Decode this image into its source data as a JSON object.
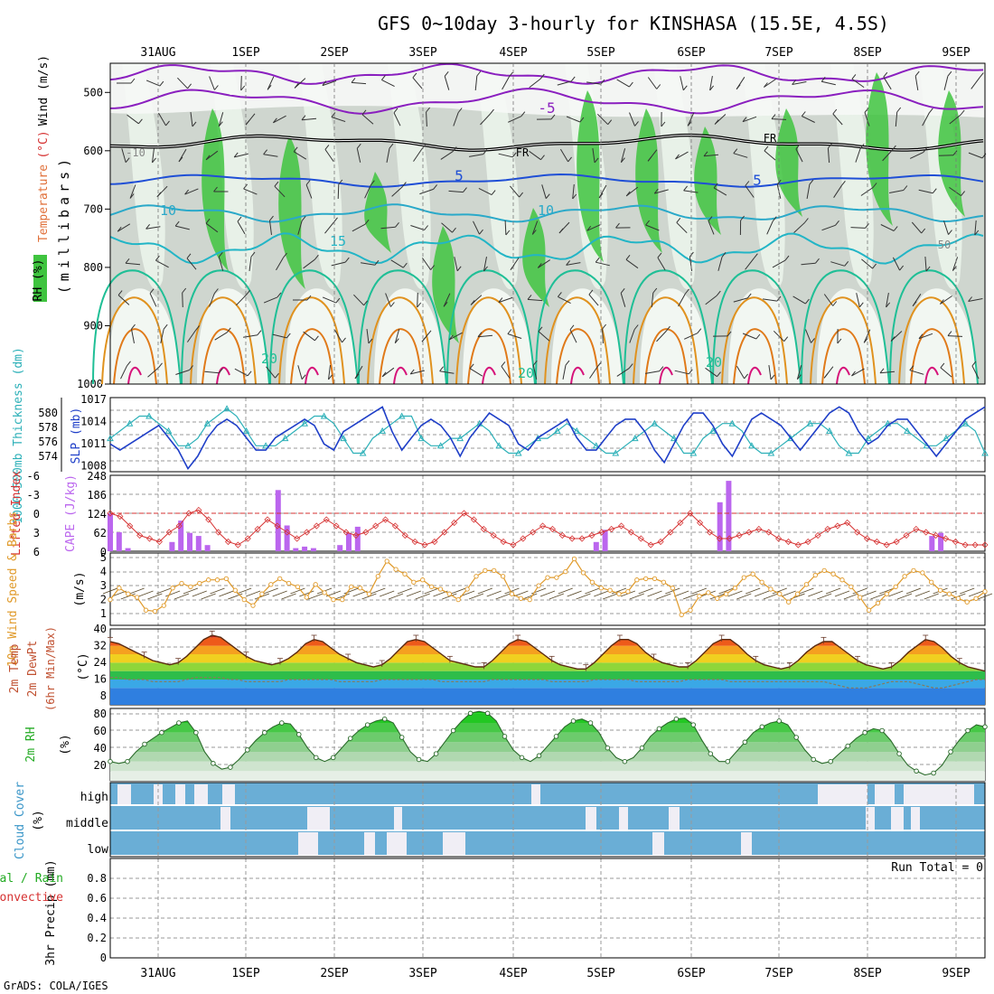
{
  "title": "GFS 0~10day 3-hourly for KINSHASA (15.5E, 4.5S)",
  "footer": "GrADS: COLA/IGES",
  "date_labels": [
    "31AUG",
    "1SEP",
    "2SEP",
    "3SEP",
    "4SEP",
    "5SEP",
    "6SEP",
    "7SEP",
    "8SEP",
    "9SEP"
  ],
  "colors": {
    "frame": "#000000",
    "grid": "#9a9a9a",
    "green": "#3fc43f",
    "purple": "#8a1fbf",
    "blue": "#1f4fd6",
    "cyan": "#2aa9c9",
    "teal": "#1fbf96",
    "orange": "#e0921f",
    "magenta": "#d6147a",
    "slp": "#1f3fc8",
    "thick": "#2cb0b8",
    "lifted": "#d63232",
    "cape": "#bb66ee",
    "wind": "#e09a2a",
    "cloud": "#6aaed6",
    "cloudgap": "#f0eef5"
  },
  "chart_data": [
    {
      "id": "upper_air",
      "type": "heatmap",
      "ylabel": "(millibars)",
      "side_labels": {
        "rh": "RH (%)",
        "temp": "Temperature",
        "temp_unit": "(°C)",
        "wind": "Wind (m/s)"
      },
      "yticks": [
        500,
        600,
        700,
        800,
        900,
        1000
      ],
      "ylim": [
        450,
        1000
      ],
      "contour_labels": [
        "-5",
        "FR",
        "FR",
        "5",
        "5",
        "10",
        "10",
        "15",
        "20",
        "20",
        "20",
        "-10",
        "50"
      ]
    },
    {
      "id": "slp_thickness",
      "type": "line",
      "left_label": "1000-500mb Thickness (dm)",
      "right_label": "SLP (mb)",
      "left_ticks": [
        "580",
        "578",
        "576",
        "574"
      ],
      "right_ticks": [
        "1017",
        "1014",
        "1011",
        "1008"
      ],
      "slp": [
        1010,
        1009,
        1010,
        1011,
        1012,
        1013,
        1011,
        1009,
        1006,
        1008,
        1011,
        1013,
        1014,
        1013,
        1011,
        1009,
        1009,
        1011,
        1012,
        1013,
        1014,
        1013,
        1010,
        1009,
        1012,
        1013,
        1014,
        1015,
        1016,
        1012,
        1009,
        1011,
        1013,
        1014,
        1013,
        1011,
        1008,
        1011,
        1013,
        1015,
        1014,
        1013,
        1010,
        1009,
        1011,
        1012,
        1013,
        1014,
        1011,
        1009,
        1009,
        1011,
        1013,
        1014,
        1014,
        1012,
        1009,
        1007,
        1010,
        1013,
        1015,
        1015,
        1013,
        1010,
        1008,
        1011,
        1014,
        1015,
        1014,
        1013,
        1011,
        1009,
        1011,
        1013,
        1015,
        1016,
        1015,
        1012,
        1010,
        1011,
        1013,
        1014,
        1014,
        1012,
        1010,
        1008,
        1010,
        1012,
        1014,
        1015,
        1016
      ],
      "thickness": [
        577,
        578,
        579,
        580,
        580,
        579,
        578,
        576,
        576,
        577,
        579,
        580,
        581,
        580,
        578,
        576,
        576,
        576,
        577,
        578,
        579,
        580,
        580,
        579,
        577,
        575,
        575,
        577,
        578,
        579,
        580,
        580,
        577,
        576,
        576,
        577,
        577,
        578,
        579,
        578,
        576,
        575,
        575,
        576,
        577,
        577,
        578,
        579,
        578,
        577,
        576,
        575,
        575,
        576,
        577,
        578,
        579,
        578,
        577,
        575,
        575,
        577,
        578,
        579,
        579,
        578,
        576,
        575,
        575,
        576,
        577,
        578,
        579,
        579,
        578,
        576,
        575,
        575,
        577,
        578,
        579,
        579,
        578,
        577,
        576,
        576,
        577,
        578,
        579,
        578,
        575
      ]
    },
    {
      "id": "cape_li",
      "type": "bar",
      "left_label": "Lifted Index",
      "right_label": "CAPE (J/kg)",
      "left_ticks": [
        "-6",
        "-3",
        "0",
        "3",
        "6"
      ],
      "right_ticks": [
        "248",
        "186",
        "124",
        "62",
        "0"
      ],
      "lifted_index": [
        0,
        0.5,
        2,
        3.5,
        4,
        4.5,
        3,
        2,
        0,
        -0.5,
        1,
        3,
        4.5,
        5,
        4,
        2.5,
        1,
        2,
        3,
        4,
        3,
        2,
        1,
        2,
        3,
        3.5,
        3,
        2,
        1,
        2,
        3.5,
        4.5,
        5,
        4.5,
        3,
        1.5,
        0,
        1,
        2.5,
        3.5,
        4.5,
        5,
        4,
        3,
        2,
        2.5,
        3.5,
        4,
        4,
        3.5,
        3,
        2.5,
        2,
        3,
        4,
        5,
        4.5,
        3,
        1.5,
        0,
        1.5,
        3,
        4,
        4,
        3.5,
        3,
        2.5,
        3,
        4,
        4.5,
        5,
        4.5,
        3.5,
        2.5,
        2,
        1.5,
        3,
        4,
        4.5,
        5,
        4.5,
        3.5,
        2.5,
        3,
        3.5,
        4,
        4.5,
        5,
        5,
        5
      ],
      "cape": [
        124,
        62,
        10,
        0,
        0,
        0,
        0,
        30,
        100,
        60,
        50,
        20,
        0,
        0,
        0,
        0,
        0,
        0,
        0,
        200,
        84,
        10,
        15,
        10,
        0,
        0,
        20,
        60,
        80,
        0,
        0,
        0,
        0,
        0,
        0,
        0,
        0,
        0,
        0,
        0,
        0,
        0,
        0,
        0,
        0,
        0,
        0,
        0,
        0,
        0,
        0,
        0,
        0,
        0,
        0,
        30,
        70,
        0,
        0,
        0,
        0,
        0,
        0,
        0,
        0,
        0,
        0,
        0,
        0,
        160,
        230,
        0,
        0,
        0,
        0,
        0,
        0,
        0,
        0,
        0,
        0,
        0,
        0,
        0,
        0,
        0,
        0,
        0,
        0,
        0,
        0,
        0,
        0,
        50,
        60,
        0,
        0,
        0,
        0,
        0
      ],
      "li_zero_line": true
    },
    {
      "id": "wind10m",
      "type": "line",
      "left_label": "10m Wind Speed & Barbs",
      "unit_label": "(m/s)",
      "yticks": [
        "5",
        "4",
        "3",
        "2",
        "1"
      ],
      "ylim": [
        0,
        5.5
      ],
      "speed": [
        1.5,
        2.5,
        2,
        1.7,
        0.6,
        0.5,
        1,
        2.5,
        2.9,
        2.6,
        2.9,
        3.2,
        3.2,
        3.3,
        2.3,
        1.5,
        1,
        2,
        2.8,
        3.3,
        2.9,
        2.6,
        1.7,
        2.8,
        2.1,
        1.5,
        1.5,
        2.6,
        2.5,
        2,
        3.5,
        4.8,
        4.1,
        3.7,
        3,
        3.2,
        2.6,
        2.4,
        2,
        1.5,
        2.4,
        3.5,
        4,
        4,
        3.5,
        2,
        1.6,
        1.5,
        2.7,
        3.4,
        3.4,
        3.9,
        5,
        3.8,
        3,
        2.5,
        2.3,
        2,
        2.2,
        3.2,
        3.3,
        3.3,
        3,
        2.5,
        0.2,
        0.6,
        1.8,
        2.1,
        1.6,
        2,
        2.5,
        3.4,
        3.7,
        3,
        2.4,
        2,
        1.3,
        2,
        2.8,
        3.6,
        4,
        3.7,
        3.2,
        2.6,
        1.7,
        0.6,
        1.2,
        2,
        2.6,
        3.5,
        4,
        3.8,
        3,
        2.3,
        2,
        1.6,
        1.3,
        1.6,
        2.2
      ],
      "barbs": true
    },
    {
      "id": "temp2m",
      "type": "area",
      "left_label": "2m Temp",
      "left_label2": "2m DewPt",
      "left_label3": "(6hr Min/Max)",
      "unit_label": "(°C)",
      "yticks": [
        "40",
        "32",
        "24",
        "16",
        "8"
      ],
      "ylim": [
        4,
        40
      ],
      "temp": [
        34,
        33,
        31,
        29,
        27,
        25,
        24,
        23,
        24,
        27,
        31,
        35,
        37,
        36,
        33,
        30,
        27,
        25,
        24,
        23,
        24,
        26,
        29,
        33,
        35,
        34,
        31,
        28,
        26,
        24,
        23,
        22,
        23,
        26,
        30,
        34,
        35,
        34,
        31,
        28,
        25,
        24,
        23,
        22,
        22,
        25,
        29,
        33,
        35,
        34,
        31,
        28,
        25,
        23,
        22,
        21,
        21,
        24,
        28,
        32,
        35,
        35,
        33,
        29,
        26,
        24,
        23,
        22,
        22,
        25,
        29,
        33,
        35,
        35,
        32,
        28,
        25,
        23,
        22,
        21,
        22,
        25,
        29,
        32,
        34,
        34,
        31,
        28,
        25,
        23,
        22,
        21,
        22,
        25,
        29,
        32,
        35,
        34,
        31,
        27,
        24,
        22,
        21,
        20
      ],
      "dewpt": [
        17,
        17,
        16,
        16,
        16,
        15,
        15,
        15,
        15,
        16,
        17,
        17,
        17,
        17,
        16,
        16,
        15,
        15,
        15,
        15,
        15,
        16,
        16,
        16,
        16,
        16,
        16,
        15,
        15,
        15,
        15,
        15,
        16,
        16,
        16,
        16,
        16,
        16,
        16,
        15,
        15,
        15,
        15,
        15,
        15,
        16,
        16,
        16,
        16,
        16,
        16,
        16,
        15,
        15,
        15,
        15,
        15,
        16,
        16,
        16,
        16,
        16,
        15,
        15,
        15,
        15,
        15,
        15,
        16,
        16,
        16,
        16,
        16,
        15,
        15,
        15,
        15,
        15,
        15,
        15,
        15,
        15,
        15,
        15,
        15,
        14,
        13,
        12,
        12,
        12,
        13,
        14,
        15,
        15,
        15,
        14,
        13,
        12,
        12,
        13,
        14,
        15,
        16,
        16
      ]
    },
    {
      "id": "rh2m",
      "type": "area",
      "left_label": "2m RH",
      "unit_label": "(%)",
      "yticks": [
        "80",
        "60",
        "40",
        "20"
      ],
      "ylim": [
        10,
        85
      ],
      "rh": [
        30,
        28,
        30,
        40,
        48,
        54,
        60,
        65,
        70,
        72,
        60,
        40,
        28,
        22,
        24,
        32,
        42,
        52,
        60,
        66,
        70,
        69,
        58,
        44,
        34,
        30,
        34,
        44,
        54,
        62,
        68,
        72,
        74,
        70,
        55,
        40,
        32,
        30,
        38,
        50,
        62,
        72,
        80,
        82,
        80,
        72,
        56,
        42,
        34,
        30,
        36,
        46,
        56,
        66,
        72,
        74,
        70,
        60,
        44,
        34,
        30,
        34,
        44,
        56,
        64,
        70,
        74,
        75,
        68,
        52,
        38,
        30,
        30,
        40,
        50,
        60,
        66,
        70,
        72,
        68,
        55,
        42,
        32,
        28,
        30,
        38,
        46,
        54,
        60,
        64,
        62,
        52,
        38,
        26,
        20,
        16,
        18,
        26,
        40,
        52,
        62,
        68,
        66
      ]
    },
    {
      "id": "cloud",
      "type": "bar",
      "left_label": "Cloud Cover",
      "unit_label": "(%)",
      "levels": [
        "high",
        "middle",
        "low"
      ]
    },
    {
      "id": "precip",
      "type": "bar",
      "left_label": "Total / Rain",
      "left_label2": "Convective",
      "axis_label": "3hr Precip (mm)",
      "yticks": [
        "0.8",
        "0.6",
        "0.4",
        "0.2",
        "0"
      ],
      "ylim": [
        0,
        1
      ],
      "run_total": "Run Total = 0",
      "values": []
    }
  ]
}
